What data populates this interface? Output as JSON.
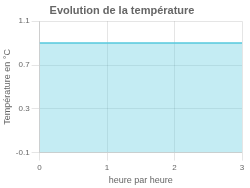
{
  "chart_data": {
    "type": "area",
    "title": "Evolution de la température",
    "x_label": "heure par heure",
    "y_label": "Température en °C",
    "x": [
      0,
      3
    ],
    "values": [
      0.9,
      0.9
    ],
    "color": "#55c8dc",
    "xlim": [
      0,
      3
    ],
    "ylim": [
      -0.1,
      1.1
    ],
    "xticks": [
      0,
      1,
      2,
      3
    ],
    "yticks": [
      -0.1,
      0.3,
      0.7,
      1.1
    ],
    "grid": true
  }
}
